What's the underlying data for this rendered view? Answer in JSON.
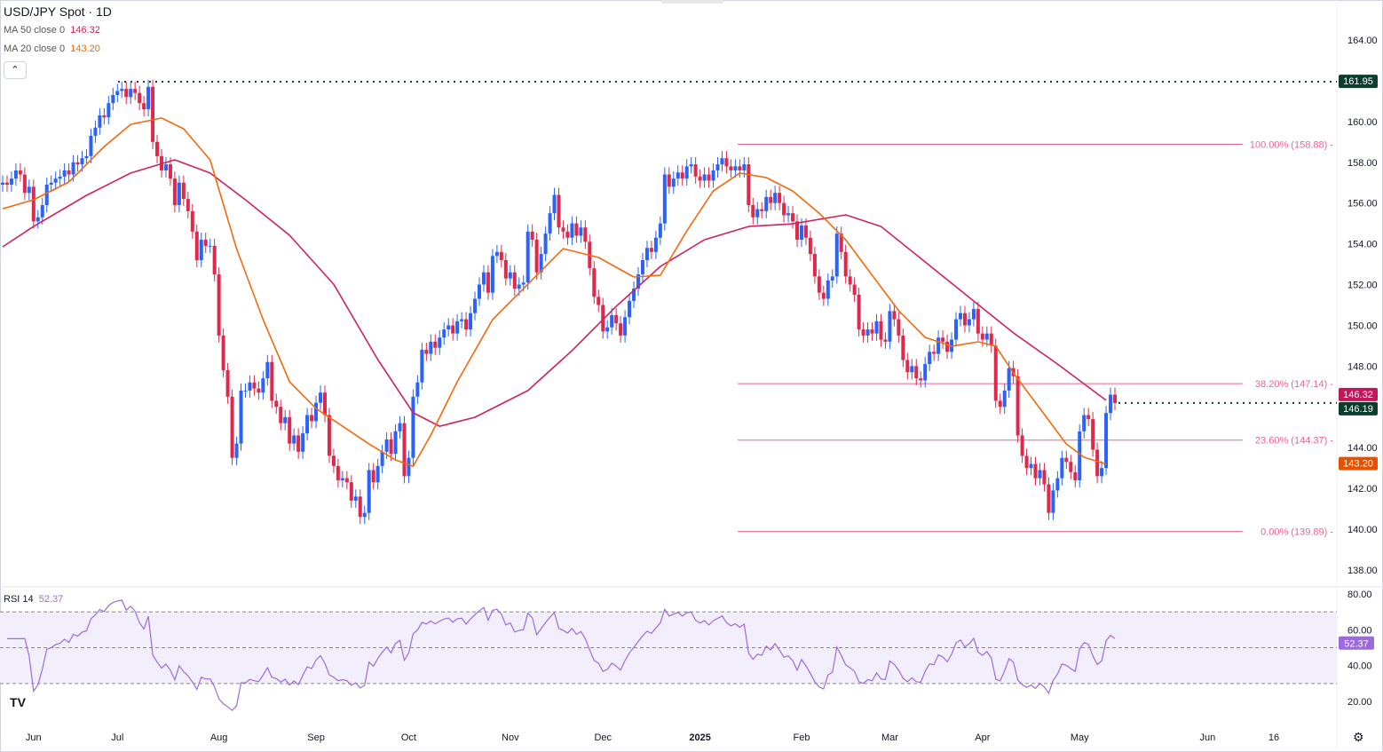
{
  "header": {
    "title": "USD/JPY Spot · 1D",
    "collapse_icon": "chevron-up-icon"
  },
  "indicators": [
    {
      "label": "MA 50 close 0",
      "value": "146.32",
      "color": "#d0215f"
    },
    {
      "label": "MA 20 close 0",
      "value": "143.20",
      "color": "#f5690c"
    }
  ],
  "rsi": {
    "label": "RSI 14",
    "value": "52.37",
    "color": "#9c6ade",
    "levels": [
      70,
      50,
      30
    ]
  },
  "colors": {
    "up": "#2962ff",
    "down": "#e0294a",
    "fib": "#f06292",
    "dotted": "#0b3d2e"
  },
  "chart_data": {
    "type": "candlestick",
    "title": "USD/JPY Spot · 1D",
    "ylim": [
      137.5,
      165
    ],
    "y_ticks": [
      "164.00",
      "160.00",
      "158.00",
      "156.00",
      "154.00",
      "152.00",
      "150.00",
      "148.00",
      "144.00",
      "142.00",
      "140.00",
      "138.00"
    ],
    "rsi_ticks": [
      "80.00",
      "60.00",
      "40.00",
      "20.00"
    ],
    "x_ticks": [
      {
        "label": "Jun",
        "bar": 7
      },
      {
        "label": "Jul",
        "bar": 26
      },
      {
        "label": "Aug",
        "bar": 49
      },
      {
        "label": "Sep",
        "bar": 71
      },
      {
        "label": "Oct",
        "bar": 92
      },
      {
        "label": "Nov",
        "bar": 115
      },
      {
        "label": "Dec",
        "bar": 136
      },
      {
        "label": "2025",
        "bar": 158,
        "bold": true
      },
      {
        "label": "Feb",
        "bar": 181
      },
      {
        "label": "Mar",
        "bar": 201
      },
      {
        "label": "Apr",
        "bar": 222
      },
      {
        "label": "May",
        "bar": 244
      },
      {
        "label": "Jun",
        "bar": 273
      },
      {
        "label": "16",
        "bar": 288
      }
    ],
    "closes": [
      157.0,
      156.9,
      157.2,
      157.6,
      157.4,
      156.5,
      156.8,
      155.1,
      155.3,
      155.9,
      156.9,
      157.0,
      157.2,
      157.3,
      157.6,
      157.4,
      158.0,
      157.9,
      158.2,
      158.3,
      159.3,
      159.7,
      160.3,
      160.2,
      160.9,
      161.3,
      161.5,
      161.6,
      161.2,
      161.6,
      161.4,
      160.9,
      160.6,
      161.7,
      159.0,
      158.3,
      157.6,
      157.9,
      157.2,
      155.9,
      157.0,
      156.2,
      155.6,
      154.6,
      153.2,
      154.2,
      153.9,
      153.9,
      152.5,
      149.5,
      147.8,
      146.5,
      143.5,
      144.2,
      146.8,
      146.8,
      147.2,
      146.9,
      146.7,
      147.4,
      148.2,
      146.3,
      146.0,
      145.2,
      145.5,
      144.2,
      144.6,
      143.8,
      144.7,
      145.6,
      145.3,
      146.2,
      146.7,
      145.6,
      143.6,
      143.1,
      142.4,
      142.5,
      142.3,
      141.4,
      141.6,
      140.6,
      140.8,
      142.9,
      142.3,
      143.1,
      143.8,
      144.4,
      143.7,
      144.8,
      145.2,
      142.6,
      143.5,
      146.5,
      147.2,
      148.8,
      148.6,
      149.2,
      148.9,
      149.4,
      149.8,
      150.0,
      149.6,
      150.2,
      150.3,
      149.8,
      150.6,
      151.3,
      152.0,
      152.6,
      151.6,
      153.4,
      153.6,
      153.2,
      152.3,
      152.6,
      151.8,
      152.0,
      152.1,
      154.6,
      154.2,
      152.6,
      153.5,
      154.5,
      155.5,
      156.4,
      154.8,
      154.6,
      154.3,
      155.0,
      154.4,
      154.8,
      154.1,
      152.8,
      151.4,
      151.0,
      149.7,
      149.9,
      150.5,
      150.1,
      149.5,
      150.4,
      151.2,
      151.8,
      152.5,
      153.2,
      153.8,
      153.6,
      154.3,
      155.0,
      157.4,
      156.8,
      157.2,
      157.5,
      157.2,
      157.8,
      157.9,
      157.3,
      157.1,
      157.4,
      157.1,
      157.6,
      157.9,
      158.2,
      157.8,
      157.6,
      157.8,
      157.6,
      157.9,
      155.9,
      155.3,
      155.7,
      155.6,
      156.3,
      156.0,
      156.5,
      156.0,
      155.4,
      155.5,
      155.1,
      154.2,
      154.9,
      154.3,
      153.5,
      152.4,
      151.6,
      151.3,
      152.2,
      152.4,
      154.5,
      153.6,
      152.4,
      152.0,
      151.5,
      149.8,
      149.5,
      149.8,
      149.6,
      150.2,
      149.3,
      149.2,
      150.7,
      150.3,
      149.5,
      148.3,
      147.7,
      148.0,
      147.4,
      147.3,
      148.1,
      148.7,
      148.6,
      149.4,
      149.2,
      148.7,
      149.3,
      150.3,
      150.6,
      150.0,
      150.3,
      150.8,
      149.6,
      149.3,
      149.6,
      149.0,
      146.3,
      146.0,
      146.8,
      147.9,
      147.5,
      144.6,
      143.6,
      143.0,
      143.2,
      142.5,
      142.9,
      142.2,
      140.8,
      141.9,
      142.5,
      143.5,
      143.3,
      142.8,
      142.4,
      144.8,
      145.6,
      145.4,
      143.9,
      142.6,
      143.0,
      145.7,
      146.6,
      146.19
    ],
    "ma50": [
      [
        0,
        153.85
      ],
      [
        7,
        154.85
      ],
      [
        19,
        156.38
      ],
      [
        29,
        157.47
      ],
      [
        39,
        158.12
      ],
      [
        47,
        157.47
      ],
      [
        55,
        156.16
      ],
      [
        65,
        154.42
      ],
      [
        75,
        152.02
      ],
      [
        85,
        148.32
      ],
      [
        93,
        145.71
      ],
      [
        99,
        145.05
      ],
      [
        107,
        145.49
      ],
      [
        119,
        146.8
      ],
      [
        129,
        148.76
      ],
      [
        139,
        150.93
      ],
      [
        149,
        152.89
      ],
      [
        159,
        154.2
      ],
      [
        169,
        154.85
      ],
      [
        179,
        154.98
      ],
      [
        191,
        155.42
      ],
      [
        199,
        154.85
      ],
      [
        209,
        153.11
      ],
      [
        219,
        151.37
      ],
      [
        229,
        149.63
      ],
      [
        239,
        148.1
      ],
      [
        250,
        146.32
      ]
    ],
    "ma20": [
      [
        0,
        155.72
      ],
      [
        7,
        156.16
      ],
      [
        15,
        157.03
      ],
      [
        23,
        158.77
      ],
      [
        29,
        159.86
      ],
      [
        36,
        160.17
      ],
      [
        41,
        159.64
      ],
      [
        47,
        158.12
      ],
      [
        53,
        153.76
      ],
      [
        59,
        150.28
      ],
      [
        65,
        147.23
      ],
      [
        71,
        145.92
      ],
      [
        77,
        145.05
      ],
      [
        83,
        144.18
      ],
      [
        89,
        143.4
      ],
      [
        93,
        143.09
      ],
      [
        97,
        144.62
      ],
      [
        103,
        147.23
      ],
      [
        111,
        150.28
      ],
      [
        119,
        152.02
      ],
      [
        127,
        153.76
      ],
      [
        135,
        153.33
      ],
      [
        143,
        152.37
      ],
      [
        149,
        152.46
      ],
      [
        155,
        154.63
      ],
      [
        161,
        156.59
      ],
      [
        167,
        157.47
      ],
      [
        173,
        157.25
      ],
      [
        179,
        156.59
      ],
      [
        185,
        155.5
      ],
      [
        191,
        154.2
      ],
      [
        197,
        152.46
      ],
      [
        203,
        150.72
      ],
      [
        209,
        149.41
      ],
      [
        215,
        148.98
      ],
      [
        221,
        149.19
      ],
      [
        225,
        148.98
      ],
      [
        229,
        147.67
      ],
      [
        235,
        145.92
      ],
      [
        241,
        144.18
      ],
      [
        245,
        143.53
      ],
      [
        250,
        143.2
      ]
    ],
    "fib_levels": [
      {
        "label": "100.00% (158.88)",
        "value": 158.88
      },
      {
        "label": "38.20% (147.14)",
        "value": 147.14
      },
      {
        "label": "23.60% (144.37)",
        "value": 144.37
      },
      {
        "label": "0.00% (139.89)",
        "value": 139.89
      }
    ],
    "horizontal_levels": [
      {
        "value": 161.95,
        "label": "161.95"
      },
      {
        "value": 146.19,
        "label": "146.19"
      }
    ],
    "price_labels": [
      {
        "value": 161.95,
        "label": "161.95",
        "color": "#0b3d2e"
      },
      {
        "value": 146.32,
        "label": "146.32",
        "color": "#c2185b"
      },
      {
        "value": 146.19,
        "label": "146.19",
        "color": "#0b3d2e"
      },
      {
        "value": 143.2,
        "label": "143.20",
        "color": "#e65100"
      }
    ]
  }
}
